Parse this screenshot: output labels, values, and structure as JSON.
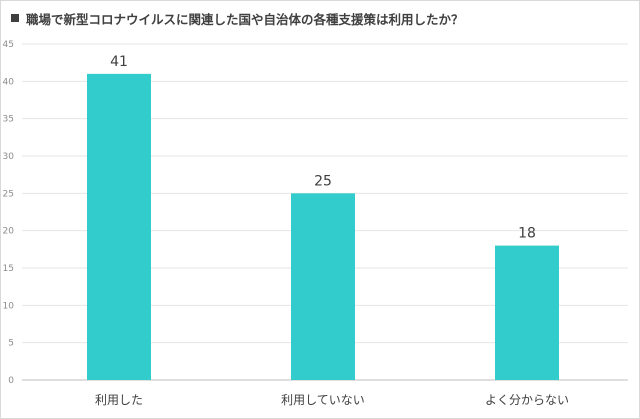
{
  "chart_data": {
    "type": "bar",
    "title": "職場で新型コロナウイルスに関連した国や自治体の各種支援策は利用したか？",
    "categories": [
      "利用した",
      "利用していない",
      "よく分からない"
    ],
    "values": [
      41,
      25,
      18
    ],
    "ylim": [
      0,
      45
    ],
    "yticks": [
      0,
      5,
      10,
      15,
      20,
      25,
      30,
      35,
      40,
      45
    ],
    "grid": true,
    "legend": "none",
    "bar_color": "#33cccc",
    "grid_color": "#e6e6e6",
    "axis_color": "#bfbfbf"
  }
}
